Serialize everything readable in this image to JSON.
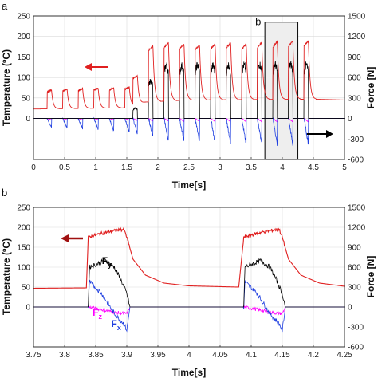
{
  "chart_data": [
    {
      "panel": "a",
      "type": "line",
      "xlabel": "Time[s]",
      "ylabel_left": "Temperature (ºC)",
      "ylabel_right": "Force [N]",
      "xlim": [
        0,
        5
      ],
      "ylim_left": [
        -100,
        250
      ],
      "ylim_right": [
        -600,
        1500
      ],
      "x_ticks": [
        0,
        0.5,
        1,
        1.5,
        2,
        2.5,
        3,
        3.5,
        4,
        4.5,
        5
      ],
      "y_ticks_left": [
        0,
        50,
        100,
        150,
        200,
        250
      ],
      "y_ticks_right": [
        -600,
        -300,
        0,
        300,
        600,
        900,
        1200,
        1500
      ],
      "grid": true,
      "annotations": [
        {
          "text": "b",
          "kind": "zoom-box",
          "x_range": [
            3.72,
            4.25
          ],
          "y_range_left": [
            -100,
            235
          ]
        },
        {
          "kind": "arrow-left",
          "points_to": "left-axis",
          "color": "#e02020"
        },
        {
          "kind": "arrow-right",
          "points_to": "right-axis",
          "color": "#000000"
        }
      ],
      "pulse_times": [
        0.22,
        0.47,
        0.72,
        0.97,
        1.22,
        1.47,
        1.6,
        1.85,
        2.1,
        2.35,
        2.6,
        2.85,
        3.1,
        3.35,
        3.6,
        3.85,
        4.1,
        4.35
      ],
      "pulse_width": 0.07,
      "series": [
        {
          "name": "Temperature",
          "axis": "left",
          "color": "#e02020",
          "baseline": [
            [
              0,
              23
            ],
            [
              1.5,
              26
            ],
            [
              1.8,
              40
            ],
            [
              2.5,
              45
            ],
            [
              4.5,
              47
            ],
            [
              5,
              45
            ]
          ],
          "peaks": [
            70,
            72,
            73,
            74,
            75,
            77,
            105,
            178,
            185,
            182,
            180,
            182,
            185,
            182,
            186,
            187,
            189,
            190
          ]
        },
        {
          "name": "Fy",
          "axis": "right",
          "color": "#000000",
          "baseline": [
            [
              0,
              0
            ],
            [
              5,
              0
            ]
          ],
          "peaks": [
            0,
            0,
            0,
            0,
            0,
            0,
            150,
            550,
            780,
            770,
            780,
            770,
            780,
            780,
            790,
            790,
            790,
            780
          ]
        },
        {
          "name": "Fx",
          "axis": "right",
          "color": "#1f3fe0",
          "baseline": [
            [
              0,
              0
            ],
            [
              5,
              0
            ]
          ],
          "peaks": [
            -130,
            -140,
            -150,
            -160,
            -180,
            -200,
            -230,
            -280,
            -330,
            -340,
            -350,
            -360,
            -370,
            -380,
            -380,
            -390,
            -390,
            -380
          ]
        },
        {
          "name": "Fz",
          "axis": "right",
          "color": "#ff00ff",
          "baseline": [
            [
              0,
              0
            ],
            [
              5,
              0
            ]
          ],
          "peaks": [
            -20,
            -20,
            -20,
            -20,
            -20,
            -25,
            -30,
            -40,
            -40,
            -45,
            -45,
            -45,
            -50,
            -50,
            -50,
            -50,
            -50,
            -50
          ]
        }
      ]
    },
    {
      "panel": "b",
      "type": "line",
      "xlabel": "Time[s]",
      "ylabel_left": "Temperature (ºC)",
      "ylabel_right": "Force [N]",
      "xlim": [
        3.75,
        4.25
      ],
      "ylim_left": [
        -100,
        250
      ],
      "ylim_right": [
        -600,
        1500
      ],
      "x_ticks": [
        3.75,
        3.8,
        3.85,
        3.9,
        3.95,
        4.0,
        4.05,
        4.1,
        4.15,
        4.2,
        4.25
      ],
      "x_tick_labels": [
        "3.75",
        "3.8",
        "3.85",
        "3.9",
        "3.95",
        "4",
        "4.05",
        "4.1",
        "4.15",
        "4.2",
        "4.25"
      ],
      "y_ticks_left": [
        0,
        50,
        100,
        150,
        200,
        250
      ],
      "y_ticks_right": [
        -600,
        -300,
        0,
        300,
        600,
        900,
        1200,
        1500
      ],
      "grid": true,
      "annotations": [
        {
          "kind": "arrow-left",
          "points_to": "left-axis",
          "color": "#a01010"
        }
      ],
      "series_labels": [
        {
          "main": "F",
          "sub": "y",
          "color": "#000000",
          "at": [
            3.86,
            650
          ]
        },
        {
          "main": "F",
          "sub": "z",
          "color": "#ff00ff",
          "at": [
            3.845,
            -130
          ]
        },
        {
          "main": "F",
          "sub": "x",
          "color": "#1f3fe0",
          "at": [
            3.875,
            -300
          ]
        }
      ],
      "series": [
        {
          "name": "Temperature",
          "axis": "left",
          "color": "#e02020",
          "points": [
            [
              3.75,
              47
            ],
            [
              3.835,
              48
            ],
            [
              3.838,
              175
            ],
            [
              3.86,
              185
            ],
            [
              3.875,
              190
            ],
            [
              3.895,
              195
            ],
            [
              3.9,
              175
            ],
            [
              3.91,
              120
            ],
            [
              3.93,
              80
            ],
            [
              3.96,
              60
            ],
            [
              4.0,
              53
            ],
            [
              4.08,
              50
            ],
            [
              4.088,
              175
            ],
            [
              4.11,
              185
            ],
            [
              4.125,
              190
            ],
            [
              4.145,
              195
            ],
            [
              4.15,
              175
            ],
            [
              4.16,
              120
            ],
            [
              4.18,
              80
            ],
            [
              4.21,
              60
            ],
            [
              4.25,
              52
            ]
          ]
        },
        {
          "name": "Fy",
          "axis": "right",
          "color": "#000000",
          "points": [
            [
              3.75,
              0
            ],
            [
              3.838,
              0
            ],
            [
              3.84,
              600
            ],
            [
              3.85,
              640
            ],
            [
              3.865,
              700
            ],
            [
              3.88,
              600
            ],
            [
              3.89,
              420
            ],
            [
              3.9,
              200
            ],
            [
              3.905,
              0
            ],
            [
              4.088,
              0
            ],
            [
              4.09,
              600
            ],
            [
              4.1,
              640
            ],
            [
              4.115,
              700
            ],
            [
              4.13,
              600
            ],
            [
              4.14,
              420
            ],
            [
              4.15,
              200
            ],
            [
              4.155,
              0
            ],
            [
              4.25,
              0
            ]
          ]
        },
        {
          "name": "Fx",
          "axis": "right",
          "color": "#1f3fe0",
          "points": [
            [
              3.75,
              0
            ],
            [
              3.838,
              0
            ],
            [
              3.84,
              380
            ],
            [
              3.86,
              200
            ],
            [
              3.88,
              -100
            ],
            [
              3.895,
              -250
            ],
            [
              3.9,
              -350
            ],
            [
              3.905,
              0
            ],
            [
              4.088,
              0
            ],
            [
              4.09,
              380
            ],
            [
              4.11,
              200
            ],
            [
              4.13,
              -100
            ],
            [
              4.145,
              -250
            ],
            [
              4.15,
              -350
            ],
            [
              4.155,
              0
            ],
            [
              4.25,
              0
            ]
          ]
        },
        {
          "name": "Fz",
          "axis": "right",
          "color": "#ff00ff",
          "points": [
            [
              3.75,
              0
            ],
            [
              3.838,
              0
            ],
            [
              3.86,
              -40
            ],
            [
              3.88,
              -80
            ],
            [
              3.9,
              -100
            ],
            [
              3.905,
              0
            ],
            [
              4.088,
              0
            ],
            [
              4.11,
              -40
            ],
            [
              4.13,
              -80
            ],
            [
              4.15,
              -100
            ],
            [
              4.155,
              0
            ],
            [
              4.25,
              0
            ]
          ]
        }
      ]
    }
  ]
}
